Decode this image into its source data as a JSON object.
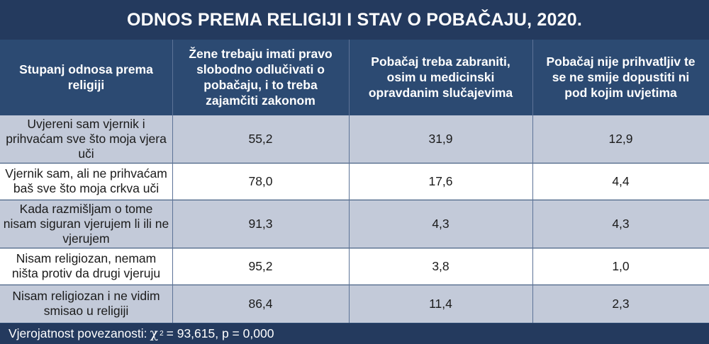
{
  "chart_data": {
    "type": "table",
    "title": "ODNOS PREMA RELIGIJI I STAV O POBAČAJU, 2020.",
    "columns": [
      "Stupanj odnosa prema religiji",
      "Žene trebaju imati pravo slobodno odlučivati o pobačaju, i to treba zajamčiti zakonom",
      "Pobačaj treba zabraniti, osim u medicinski opravdanim slučajevima",
      "Pobačaj nije prihvatljiv te se ne smije dopustiti ni pod kojim uvjetima"
    ],
    "rows": [
      {
        "label": "Uvjereni sam vjernik i prihvaćam sve što moja vjera uči",
        "values": [
          "55,2",
          "31,9",
          "12,9"
        ]
      },
      {
        "label": "Vjernik sam, ali ne prihvaćam baš sve što moja crkva uči",
        "values": [
          "78,0",
          "17,6",
          "4,4"
        ]
      },
      {
        "label": "Kada razmišljam o tome nisam siguran vjerujem li ili ne vjerujem",
        "values": [
          "91,3",
          "4,3",
          "4,3"
        ]
      },
      {
        "label": "Nisam religiozan, nemam ništa protiv da drugi vjeruju",
        "values": [
          "95,2",
          "3,8",
          "1,0"
        ]
      },
      {
        "label": "Nisam religiozan i ne vidim smisao u religiji",
        "values": [
          "86,4",
          "11,4",
          "2,3"
        ]
      }
    ],
    "footnote": {
      "prefix": "Vjerojatnost povezanosti:",
      "symbol": "χ",
      "exponent": "2",
      "rest": "= 93,615, p = 0,000"
    }
  },
  "colors": {
    "title_bg": "#243a5e",
    "header_bg": "#2c4a72",
    "shaded_row": "#c3cad9",
    "plain_row": "#ffffff",
    "text_dark": "#1b1b1b",
    "text_light": "#ffffff"
  }
}
